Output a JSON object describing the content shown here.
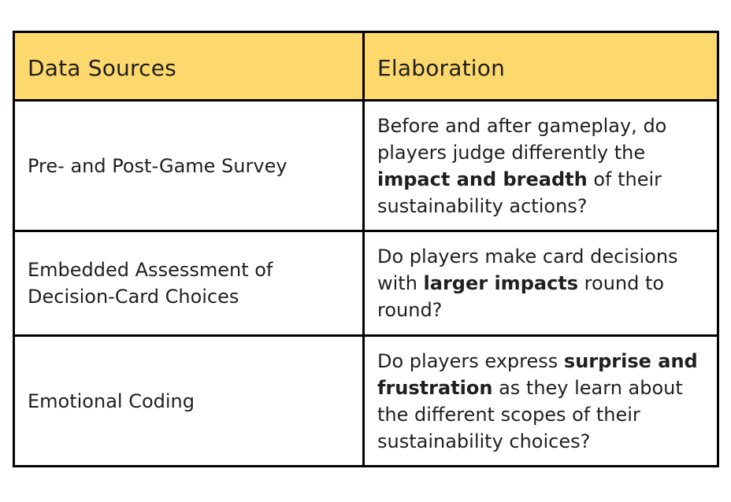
{
  "table": {
    "headers": [
      "Data Sources",
      "Elaboration"
    ],
    "rows": [
      {
        "source": "Pre- and Post-Game Survey",
        "elaboration": {
          "before": "Before and after gameplay, do players judge differently the ",
          "bold": "impact and breadth",
          "after": " of their sustainability actions?"
        }
      },
      {
        "source": "Embedded Assessment of Decision-Card Choices",
        "elaboration": {
          "before": "Do players make card decisions with ",
          "bold": "larger impacts",
          "after": " round to round?"
        }
      },
      {
        "source": "Emotional Coding",
        "elaboration": {
          "before": "Do players express ",
          "bold": "surprise and frustration",
          "after": " as they learn about the different scopes of their sustainability choices?"
        }
      }
    ]
  },
  "colors": {
    "header_bg": "#fdd86c",
    "border": "#000000",
    "text": "#1f1f1f"
  }
}
